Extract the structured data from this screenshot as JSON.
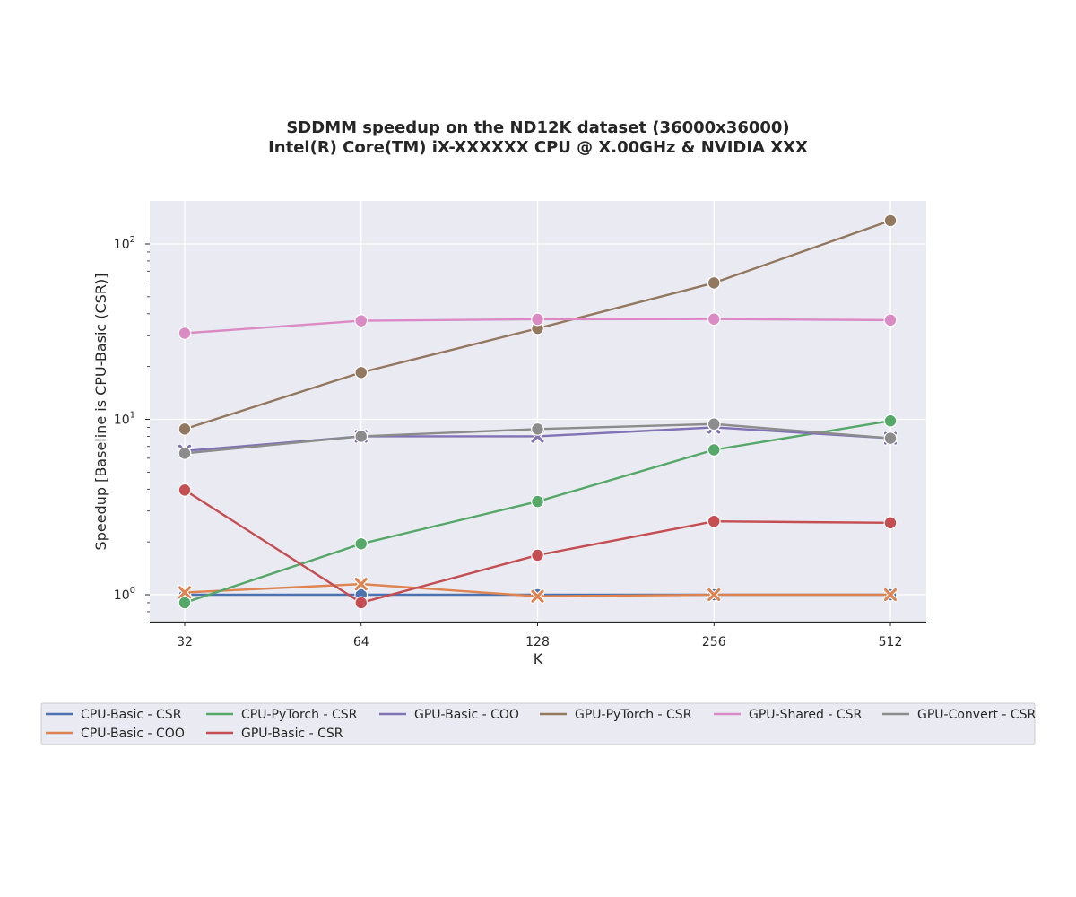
{
  "chart_data": {
    "type": "line",
    "title": "SDDMM speedup on the ND12K dataset (36000x36000)",
    "subtitle": "Intel(R) Core(TM) iX-XXXXXX CPU @ X.00GHz & NVIDIA XXX",
    "xlabel": "K",
    "ylabel": "Speedup [Baseline is CPU-Basic (CSR)]",
    "x_scale": "log2",
    "y_scale": "log10",
    "x": [
      32,
      64,
      128,
      256,
      512
    ],
    "x_tick_labels": [
      "32",
      "64",
      "128",
      "256",
      "512"
    ],
    "y_ticks": [
      {
        "value": 1,
        "base": "10",
        "exp": "0"
      },
      {
        "value": 10,
        "base": "10",
        "exp": "1"
      },
      {
        "value": 100,
        "base": "10",
        "exp": "2"
      }
    ],
    "ylim": [
      0.7,
      180
    ],
    "grid": true,
    "legend_position": "bottom",
    "series": [
      {
        "name": "CPU-Basic - CSR",
        "color": "#4c72b0",
        "marker": "circle",
        "values": [
          1.0,
          1.0,
          1.0,
          1.0,
          1.0
        ]
      },
      {
        "name": "CPU-Basic - COO",
        "color": "#dd8452",
        "marker": "x",
        "values": [
          1.03,
          1.15,
          0.98,
          1.0,
          1.0
        ]
      },
      {
        "name": "CPU-PyTorch - CSR",
        "color": "#55a868",
        "marker": "circle",
        "values": [
          0.9,
          1.95,
          3.4,
          6.7,
          9.8
        ]
      },
      {
        "name": "GPU-Basic - CSR",
        "color": "#c44e52",
        "marker": "circle",
        "values": [
          3.95,
          0.9,
          1.68,
          2.62,
          2.57
        ]
      },
      {
        "name": "GPU-Basic - COO",
        "color": "#8172b3",
        "marker": "x",
        "values": [
          6.6,
          8.0,
          8.0,
          9.0,
          7.8
        ]
      },
      {
        "name": "GPU-PyTorch - CSR",
        "color": "#937860",
        "marker": "circle",
        "values": [
          8.8,
          18.5,
          33.0,
          60.0,
          136.0
        ]
      },
      {
        "name": "GPU-Shared - CSR",
        "color": "#da8bc3",
        "marker": "circle",
        "values": [
          31.0,
          36.5,
          37.2,
          37.3,
          36.8
        ]
      },
      {
        "name": "GPU-Convert - CSR",
        "color": "#8c8c8c",
        "marker": "circle",
        "values": [
          6.4,
          8.0,
          8.8,
          9.4,
          7.8
        ]
      }
    ]
  }
}
